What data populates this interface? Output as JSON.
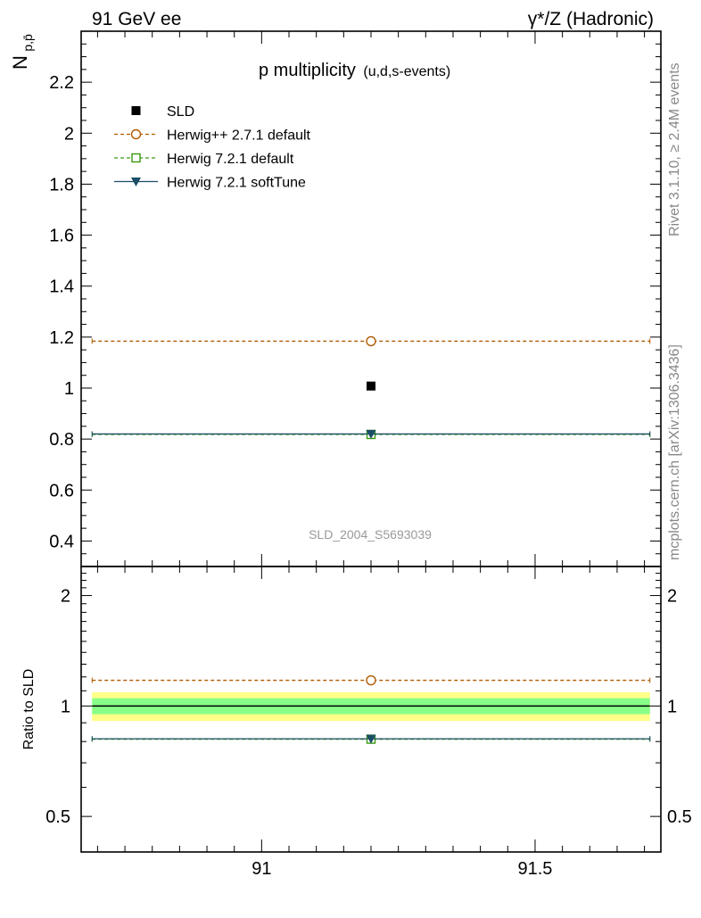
{
  "header": {
    "left": "91 GeV ee",
    "right": "γ*/Z (Hadronic)"
  },
  "side_text": {
    "top": "Rivet 3.1.10, ≥ 2.4M events",
    "bottom": "mcplots.cern.ch [arXiv:1306.3436]"
  },
  "watermark": "SLD_2004_S5693039",
  "chart_data": {
    "type": "scatter",
    "title_main": "p multiplicity",
    "title_sub": "(u,d,s-events)",
    "ylabel_main": "N",
    "ylabel_sub": "p,p̄",
    "xlim": [
      90.67,
      91.73
    ],
    "ylim": [
      0.3,
      2.4
    ],
    "x_ticks": [
      91,
      91.5
    ],
    "x_tick_labels": [
      "91",
      "91.5"
    ],
    "y_ticks": [
      0.4,
      0.6,
      0.8,
      1,
      1.2,
      1.4,
      1.6,
      1.8,
      2,
      2.2
    ],
    "y_tick_labels": [
      "0.4",
      "0.6",
      "0.8",
      "1",
      "1.2",
      "1.4",
      "1.6",
      "1.8",
      "2",
      "2.2"
    ],
    "data_point": {
      "name": "SLD",
      "x": 91.2,
      "y": 1.008
    },
    "series": [
      {
        "name": "Herwig++ 2.7.1 default",
        "color": "#b05a00",
        "marker": "open-circle",
        "dash": "dashed",
        "x": 91.2,
        "y": 1.184,
        "xrange": [
          90.69,
          91.71
        ]
      },
      {
        "name": "Herwig 7.2.1 default",
        "color": "#3a9a10",
        "marker": "open-square",
        "dash": "dashed",
        "x": 91.2,
        "y": 0.818,
        "xrange": [
          90.69,
          91.71
        ]
      },
      {
        "name": "Herwig 7.2.1 softTune",
        "color": "#1a4d66",
        "marker": "filled-triangle-down",
        "dash": "solid",
        "x": 91.2,
        "y": 0.82,
        "xrange": [
          90.69,
          91.71
        ]
      }
    ],
    "legend": [
      {
        "label": "SLD",
        "marker": "filled-square",
        "color": "#000000"
      },
      {
        "label": "Herwig++ 2.7.1 default",
        "marker": "open-circle",
        "color": "#b05a00"
      },
      {
        "label": "Herwig 7.2.1 default",
        "marker": "open-square",
        "color": "#3a9a10"
      },
      {
        "label": "Herwig 7.2.1 softTune",
        "marker": "filled-triangle-down",
        "color": "#1a4d66"
      }
    ],
    "ratio": {
      "ylabel": "Ratio to SLD",
      "ylim": [
        0.4,
        2.4
      ],
      "log_scale": true,
      "y_ticks": [
        0.5,
        1,
        2
      ],
      "y_tick_labels": [
        "0.5",
        "1",
        "2"
      ],
      "band_outer": [
        0.91,
        1.09
      ],
      "band_inner": [
        0.95,
        1.05
      ],
      "band_outer_color": "#ffff88",
      "band_inner_color": "#88ff88",
      "values": [
        1.175,
        0.812,
        0.814
      ]
    }
  }
}
